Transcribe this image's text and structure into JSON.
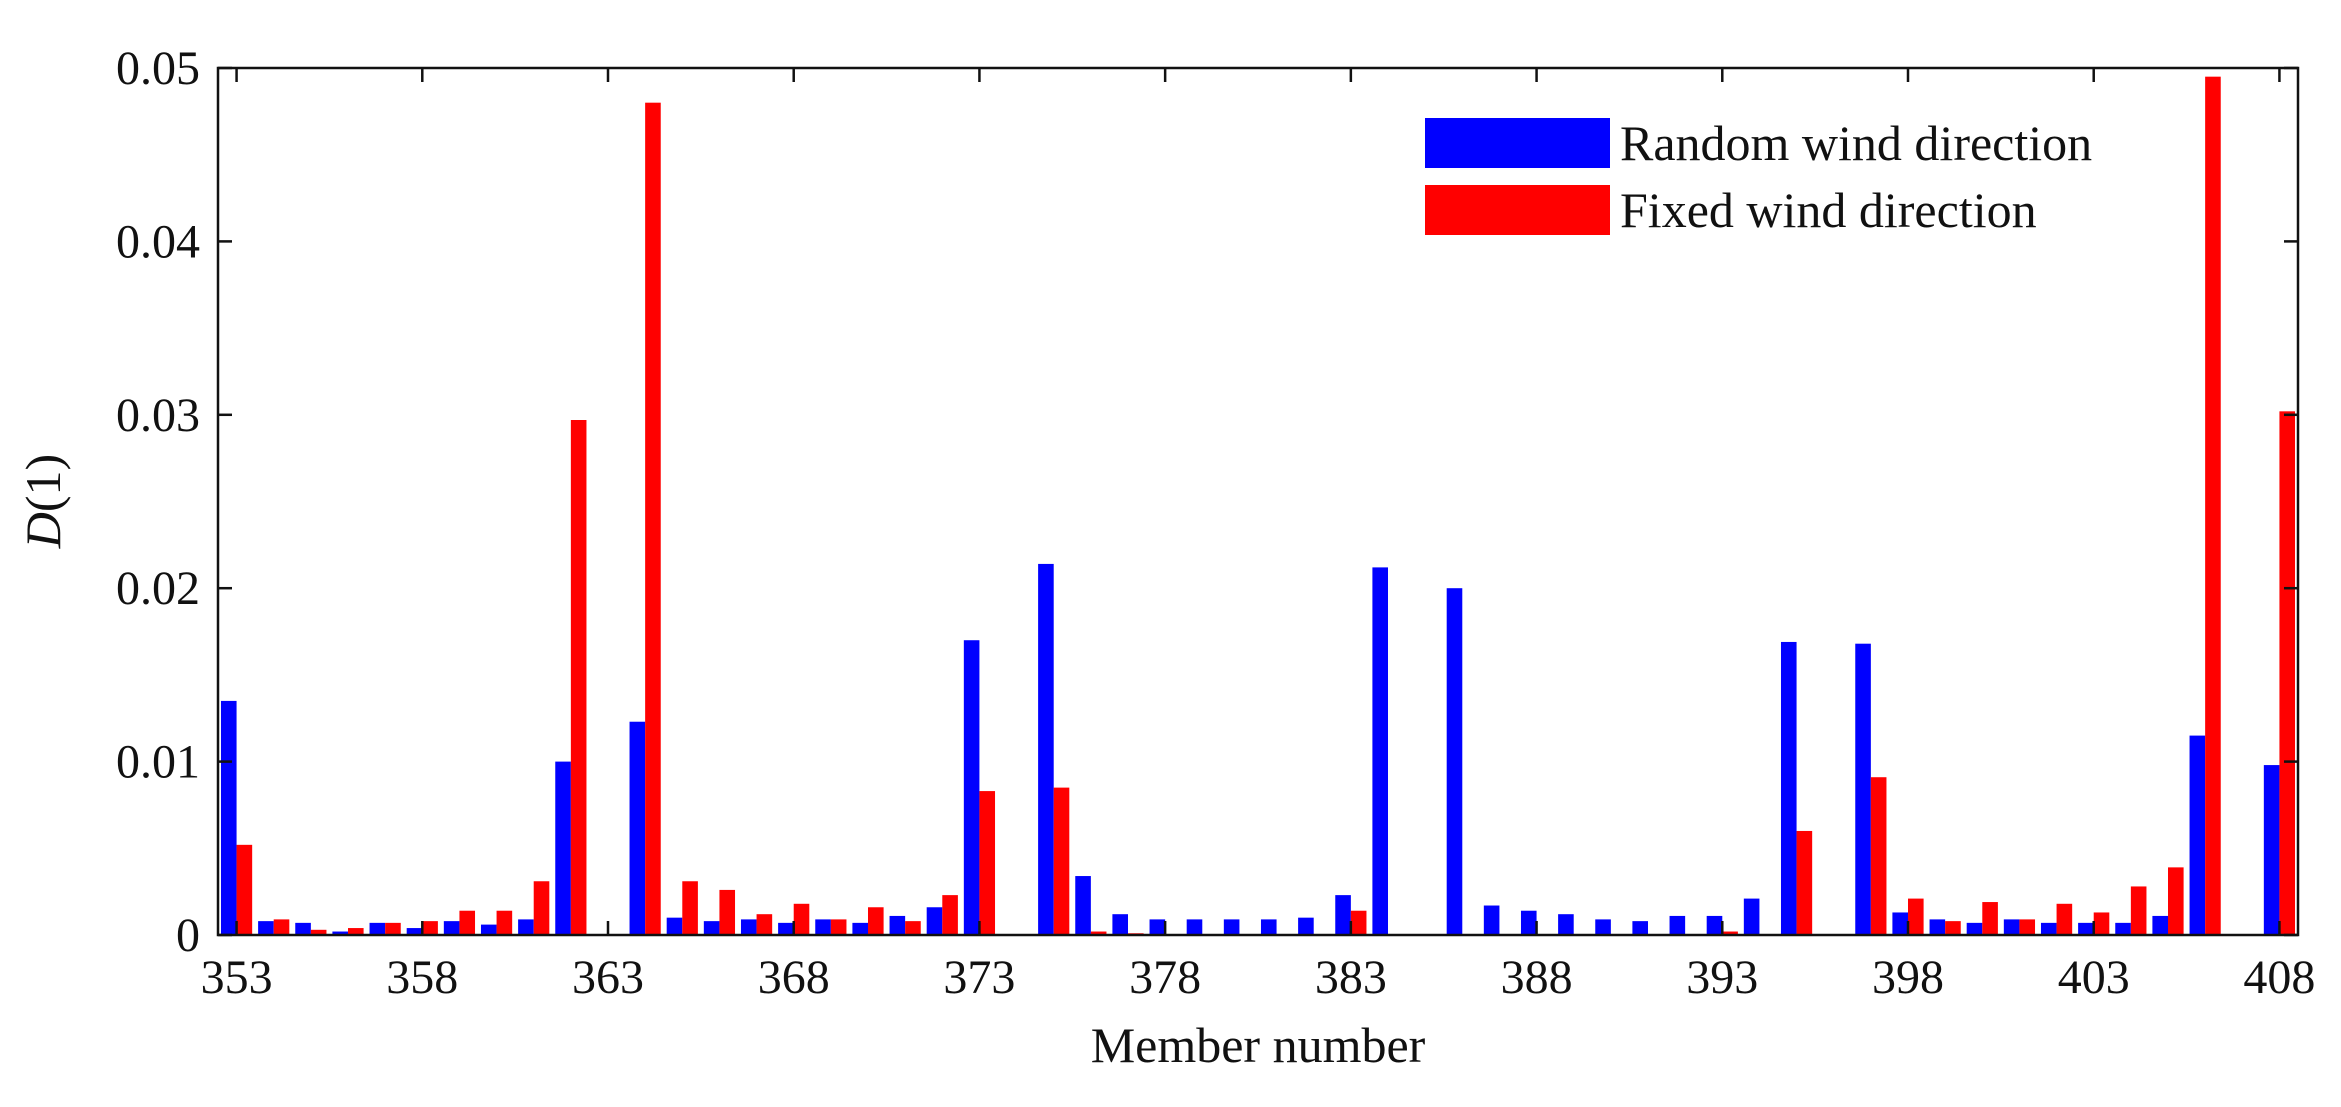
{
  "chart_data": {
    "type": "bar",
    "xlabel": "Member number",
    "ylabel_italic": "D",
    "ylabel_rest": "(1)",
    "ylim": [
      0,
      0.05
    ],
    "yticks": [
      "0",
      "0.01",
      "0.02",
      "0.03",
      "0.04",
      "0.05"
    ],
    "ytick_values": [
      0,
      0.01,
      0.02,
      0.03,
      0.04,
      0.05
    ],
    "xtick_labels": [
      "353",
      "358",
      "363",
      "368",
      "373",
      "378",
      "383",
      "388",
      "393",
      "398",
      "403",
      "408"
    ],
    "xtick_values": [
      353,
      358,
      363,
      368,
      373,
      378,
      383,
      388,
      393,
      398,
      403,
      408
    ],
    "grid": false,
    "legend_position": "top-right",
    "categories": [
      353,
      354,
      355,
      356,
      357,
      358,
      359,
      360,
      361,
      362,
      363,
      364,
      365,
      366,
      367,
      368,
      369,
      370,
      371,
      372,
      373,
      374,
      375,
      376,
      377,
      378,
      379,
      380,
      381,
      382,
      383,
      384,
      385,
      386,
      387,
      388,
      389,
      390,
      391,
      392,
      393,
      394,
      395,
      396,
      397,
      398,
      399,
      400,
      401,
      402,
      403,
      404,
      405,
      406,
      407,
      408
    ],
    "series": [
      {
        "name": "Random wind direction",
        "color": "#0000ff",
        "values": [
          0.0135,
          0.0008,
          0.0007,
          0.0002,
          0.0007,
          0.0004,
          0.0008,
          0.0006,
          0.0009,
          0.01,
          0,
          0.0123,
          0.001,
          0.0008,
          0.0009,
          0.0007,
          0.0009,
          0.0007,
          0.0011,
          0.0016,
          0.017,
          0,
          0.0214,
          0.0034,
          0.0012,
          0.0009,
          0.0009,
          0.0009,
          0.0009,
          0.001,
          0.0023,
          0.0212,
          0,
          0.02,
          0.0017,
          0.0014,
          0.0012,
          0.0009,
          0.0008,
          0.0011,
          0.0011,
          0.0021,
          0.0169,
          0,
          0.0168,
          0.0013,
          0.0009,
          0.0007,
          0.0009,
          0.0007,
          0.0007,
          0.0007,
          0.0011,
          0.0115,
          0,
          0.0098
        ]
      },
      {
        "name": "Fixed wind direction",
        "color": "#ff0000",
        "values": [
          0.0052,
          0.0009,
          0.0003,
          0.0004,
          0.0007,
          0.0008,
          0.0014,
          0.0014,
          0.0031,
          0.0297,
          0,
          0.048,
          0.0031,
          0.0026,
          0.0012,
          0.0018,
          0.0009,
          0.0016,
          0.0008,
          0.0023,
          0.0083,
          0,
          0.0085,
          0.0002,
          0.0001,
          0,
          0,
          0,
          0,
          0,
          0.0014,
          0,
          0,
          0,
          0,
          0,
          0,
          0,
          0,
          0,
          0.0002,
          0,
          0.006,
          0,
          0.0091,
          0.0021,
          0.0008,
          0.0019,
          0.0009,
          0.0018,
          0.0013,
          0.0028,
          0.0039,
          0.0495,
          0,
          0.0302
        ]
      }
    ]
  }
}
